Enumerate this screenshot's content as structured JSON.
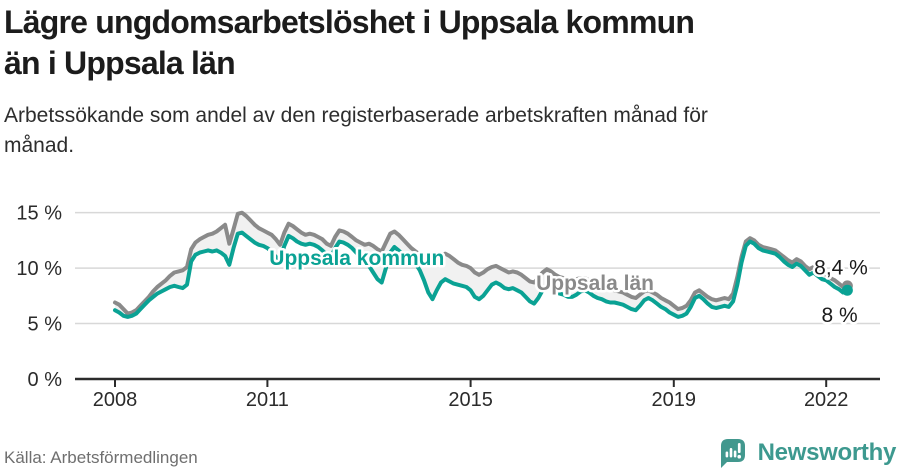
{
  "title_lines": {
    "line1": "Lägre ungdomsarbetslöshet i Uppsala kommun",
    "line2": "än i Uppsala län"
  },
  "subtitle_lines": {
    "line1": "Arbetssökande som andel av den registerbaserade arbetskraften månad för",
    "line2": "månad."
  },
  "source": "Källa: Arbetsförmedlingen",
  "brand": {
    "name": "Newsworthy",
    "color": "#3d998f",
    "icon": "newsworthy-bubble-chart-icon"
  },
  "colors": {
    "accent_teal": "#0aa294",
    "line_gray": "#8a8a8a",
    "band": "#f1f1f1",
    "grid": "#d8d8d8",
    "axis": "#2b2b2b",
    "text": "#1c1c1c"
  },
  "chart_data": {
    "type": "line",
    "title": "Lägre ungdomsarbetslöshet i Uppsala kommun än i Uppsala län",
    "subtitle": "Arbetssökande som andel av den registerbaserade arbetskraften månad för månad.",
    "unit": "%",
    "x_interval": "monthly",
    "x_start": {
      "year": 2008,
      "month": 1
    },
    "x_end": {
      "year": 2022,
      "month": 6
    },
    "ylim": [
      0,
      15
    ],
    "grid": "horizontal",
    "grid_color": "#d8d8d8",
    "axis_color": "#2b2b2b",
    "tick_label_color": "#2b2b2b",
    "end_label_color": "#1b1b1b",
    "band_fill": "#f1f1f1",
    "yticks": [
      {
        "value": 0,
        "label": "0 %"
      },
      {
        "value": 5,
        "label": "5 %"
      },
      {
        "value": 10,
        "label": "10 %"
      },
      {
        "value": 15,
        "label": "15 %"
      }
    ],
    "xticks": [
      {
        "value": 2008,
        "label": "2008"
      },
      {
        "value": 2011,
        "label": "2011"
      },
      {
        "value": 2015,
        "label": "2015"
      },
      {
        "value": 2019,
        "label": "2019"
      },
      {
        "value": 2022,
        "label": "2022"
      }
    ],
    "series": [
      {
        "name": "Uppsala län",
        "color": "#8a8a8a",
        "end_value_label": "8,4 %",
        "values": [
          6.9,
          6.7,
          6.3,
          5.9,
          6.0,
          6.2,
          6.6,
          7.0,
          7.4,
          7.9,
          8.3,
          8.6,
          8.9,
          9.3,
          9.6,
          9.7,
          9.8,
          10.1,
          11.7,
          12.3,
          12.6,
          12.8,
          13.0,
          13.1,
          13.3,
          13.6,
          13.9,
          12.2,
          13.5,
          14.9,
          15.0,
          14.7,
          14.3,
          13.9,
          13.6,
          13.4,
          13.2,
          13.0,
          12.6,
          12.1,
          13.2,
          14.0,
          13.8,
          13.5,
          13.2,
          13.0,
          13.1,
          13.0,
          12.8,
          12.6,
          12.2,
          12.0,
          12.8,
          13.4,
          13.3,
          13.1,
          12.8,
          12.5,
          12.3,
          12.1,
          12.2,
          12.0,
          11.7,
          11.5,
          12.3,
          13.1,
          13.3,
          13.0,
          12.6,
          12.2,
          11.8,
          11.5,
          11.2,
          10.8,
          10.5,
          10.3,
          10.7,
          11.1,
          11.3,
          11.1,
          10.8,
          10.5,
          10.3,
          10.2,
          10.0,
          9.6,
          9.4,
          9.6,
          9.9,
          10.1,
          10.2,
          10.0,
          9.8,
          9.6,
          9.7,
          9.6,
          9.4,
          9.1,
          8.8,
          8.7,
          9.1,
          9.6,
          9.9,
          9.7,
          9.4,
          9.2,
          9.1,
          9.0,
          8.9,
          9.0,
          9.1,
          9.1,
          8.9,
          8.7,
          8.5,
          8.4,
          8.2,
          8.1,
          8.0,
          7.9,
          7.8,
          7.6,
          7.4,
          7.3,
          7.6,
          7.9,
          8.0,
          7.8,
          7.6,
          7.3,
          7.1,
          6.9,
          6.6,
          6.3,
          6.4,
          6.6,
          7.1,
          7.8,
          8.0,
          7.7,
          7.4,
          7.2,
          7.1,
          7.2,
          7.3,
          7.2,
          7.7,
          9.2,
          11.0,
          12.4,
          12.7,
          12.5,
          12.1,
          11.9,
          11.8,
          11.7,
          11.6,
          11.3,
          11.0,
          10.7,
          10.5,
          10.8,
          10.6,
          10.2,
          9.9,
          10.1,
          9.8,
          9.6,
          9.4,
          9.1,
          8.9,
          8.6,
          8.3,
          8.4
        ]
      },
      {
        "name": "Uppsala kommun",
        "color": "#0aa294",
        "end_value_label": "8 %",
        "values": [
          6.2,
          6.0,
          5.7,
          5.6,
          5.7,
          5.9,
          6.3,
          6.7,
          7.1,
          7.4,
          7.7,
          7.9,
          8.1,
          8.3,
          8.4,
          8.3,
          8.2,
          8.5,
          10.6,
          11.2,
          11.4,
          11.5,
          11.6,
          11.5,
          11.6,
          11.4,
          11.1,
          10.3,
          11.8,
          13.1,
          13.2,
          12.9,
          12.6,
          12.3,
          12.1,
          12.0,
          11.8,
          11.5,
          11.0,
          10.8,
          12.0,
          12.9,
          12.7,
          12.4,
          12.2,
          12.1,
          12.2,
          12.1,
          11.9,
          11.6,
          11.2,
          11.0,
          11.8,
          12.4,
          12.3,
          12.1,
          11.8,
          11.4,
          11.0,
          10.6,
          10.2,
          9.6,
          9.0,
          8.7,
          10.0,
          11.4,
          11.9,
          11.6,
          11.2,
          10.9,
          10.7,
          10.4,
          9.8,
          8.9,
          7.8,
          7.2,
          8.0,
          8.7,
          9.0,
          8.8,
          8.6,
          8.5,
          8.4,
          8.3,
          8.0,
          7.4,
          7.2,
          7.5,
          8.0,
          8.5,
          8.7,
          8.5,
          8.2,
          8.1,
          8.2,
          8.0,
          7.8,
          7.4,
          7.0,
          6.8,
          7.3,
          8.0,
          8.4,
          8.2,
          7.9,
          7.7,
          7.6,
          7.4,
          7.4,
          7.6,
          7.9,
          8.0,
          7.8,
          7.5,
          7.3,
          7.2,
          7.0,
          6.9,
          6.9,
          6.8,
          6.7,
          6.5,
          6.3,
          6.2,
          6.6,
          7.1,
          7.3,
          7.1,
          6.8,
          6.5,
          6.3,
          6.0,
          5.8,
          5.6,
          5.7,
          5.9,
          6.5,
          7.3,
          7.5,
          7.2,
          6.8,
          6.5,
          6.4,
          6.5,
          6.6,
          6.5,
          7.0,
          8.5,
          10.5,
          12.0,
          12.4,
          12.2,
          11.8,
          11.6,
          11.5,
          11.4,
          11.3,
          11.0,
          10.6,
          10.3,
          10.1,
          10.4,
          10.2,
          9.8,
          9.4,
          9.6,
          9.3,
          9.0,
          8.9,
          8.6,
          8.3,
          8.1,
          7.8,
          8.0
        ]
      }
    ],
    "annotations": {
      "series_labels": [
        {
          "text": "Uppsala kommun",
          "color": "#0aa294",
          "t": 2012.76,
          "pct": 10.9
        },
        {
          "text": "Uppsala län",
          "color": "#8a8a8a",
          "t": 2017.45,
          "pct": 8.65
        }
      ],
      "end_labels": [
        {
          "text": "8,4 %",
          "t": 2022.82,
          "pct": 10.05
        },
        {
          "text": "8 %",
          "t": 2022.62,
          "pct": 5.75
        }
      ]
    },
    "legend_position": "inline-labels"
  }
}
